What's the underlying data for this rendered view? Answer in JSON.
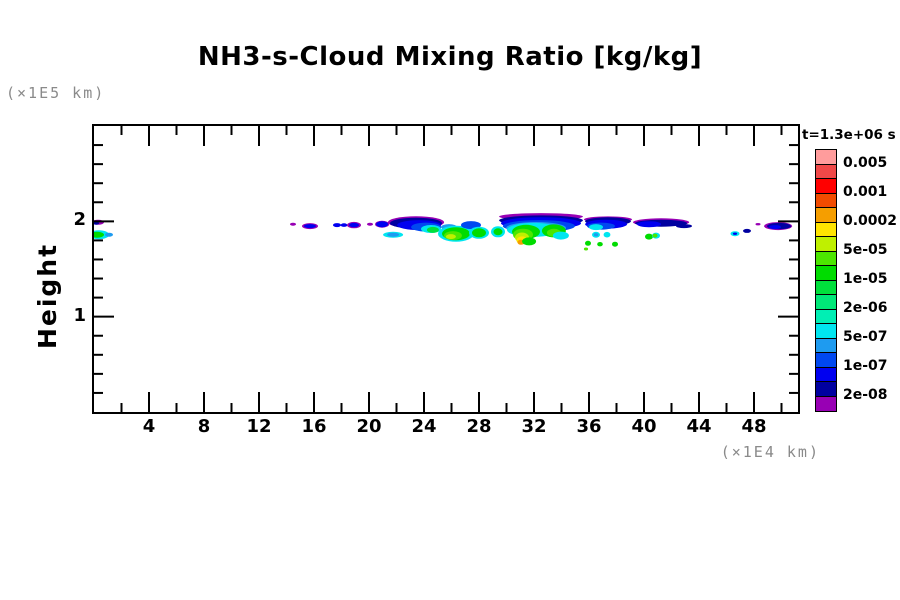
{
  "chart_data": {
    "type": "heatmap",
    "title": "NH3-s-Cloud Mixing Ratio [kg/kg]",
    "y_axis_label": "Height",
    "y_units_label": "(×1E5 km)",
    "x_units_label": "(×1E4 km)",
    "time_label": "t=1.3e+06 s",
    "x_range": [
      0,
      51.2
    ],
    "y_range": [
      0,
      3
    ],
    "x_major_ticks": [
      4,
      8,
      12,
      16,
      20,
      24,
      28,
      32,
      36,
      40,
      44,
      48
    ],
    "x_minor_ticks": [
      2,
      6,
      10,
      14,
      18,
      22,
      26,
      30,
      34,
      38,
      42,
      46,
      50
    ],
    "y_major_ticks": [
      1,
      2
    ],
    "y_minor_ticks": [
      0.2,
      0.4,
      0.6,
      0.8,
      1.2,
      1.4,
      1.6,
      1.8,
      2.2,
      2.4,
      2.6,
      2.8
    ],
    "grid": false,
    "legend": {
      "position": "right",
      "labels": [
        "0.005",
        "0.001",
        "0.0002",
        "5e-05",
        "1e-05",
        "2e-06",
        "5e-07",
        "1e-07",
        "2e-08"
      ],
      "colors": [
        "#FF9C9C",
        "#F04848",
        "#FF0000",
        "#F14B00",
        "#F59E00",
        "#FFE400",
        "#BFF000",
        "#4CE600",
        "#00DC00",
        "#00E03C",
        "#00E878",
        "#00EFB4",
        "#00E6F0",
        "#1E9BF0",
        "#0048F0",
        "#0000F0",
        "#0000A0",
        "#9800B4"
      ]
    },
    "blob_fields": [
      "x",
      "y",
      "rx",
      "ry",
      "color_index"
    ],
    "blobs": [
      [
        0.29,
        1.99,
        0.44,
        0.026,
        17
      ],
      [
        0.15,
        1.98,
        0.22,
        0.016,
        16
      ],
      [
        0.36,
        1.86,
        0.73,
        0.047,
        12
      ],
      [
        0.22,
        1.86,
        0.51,
        0.031,
        8
      ],
      [
        1.09,
        1.86,
        0.29,
        0.021,
        13
      ],
      [
        14.47,
        1.97,
        0.22,
        0.016,
        17
      ],
      [
        15.71,
        1.95,
        0.58,
        0.031,
        17
      ],
      [
        15.71,
        1.95,
        0.44,
        0.021,
        15
      ],
      [
        17.67,
        1.96,
        0.29,
        0.021,
        15
      ],
      [
        18.18,
        1.96,
        0.25,
        0.019,
        15
      ],
      [
        18.91,
        1.96,
        0.51,
        0.034,
        17
      ],
      [
        18.91,
        1.96,
        0.36,
        0.023,
        15
      ],
      [
        20.07,
        1.97,
        0.22,
        0.016,
        17
      ],
      [
        20.95,
        1.97,
        0.51,
        0.037,
        17
      ],
      [
        20.95,
        1.97,
        0.44,
        0.031,
        15
      ],
      [
        21.75,
        1.86,
        0.73,
        0.031,
        12
      ],
      [
        21.75,
        1.86,
        0.44,
        0.021,
        13
      ],
      [
        23.42,
        1.99,
        2.04,
        0.063,
        17
      ],
      [
        23.42,
        1.98,
        1.89,
        0.058,
        16
      ],
      [
        23.64,
        1.96,
        1.6,
        0.052,
        15
      ],
      [
        24.15,
        1.94,
        1.09,
        0.047,
        14
      ],
      [
        24.51,
        1.92,
        0.73,
        0.042,
        12
      ],
      [
        24.65,
        1.91,
        0.44,
        0.031,
        9
      ],
      [
        25.82,
        1.94,
        0.58,
        0.031,
        13
      ],
      [
        26.33,
        1.87,
        1.31,
        0.084,
        12
      ],
      [
        26.33,
        1.87,
        1.02,
        0.068,
        8
      ],
      [
        26.11,
        1.85,
        0.65,
        0.047,
        7
      ],
      [
        25.96,
        1.84,
        0.36,
        0.026,
        6
      ],
      [
        27.42,
        1.96,
        0.73,
        0.042,
        14
      ],
      [
        28.0,
        1.88,
        0.73,
        0.063,
        12
      ],
      [
        28.0,
        1.88,
        0.51,
        0.047,
        8
      ],
      [
        29.38,
        1.89,
        0.51,
        0.058,
        12
      ],
      [
        29.38,
        1.89,
        0.33,
        0.037,
        8
      ],
      [
        32.51,
        2.05,
        3.05,
        0.037,
        17
      ],
      [
        32.51,
        2.01,
        3.05,
        0.052,
        16
      ],
      [
        32.51,
        1.98,
        2.91,
        0.063,
        15
      ],
      [
        32.36,
        1.95,
        2.62,
        0.063,
        14
      ],
      [
        32.15,
        1.93,
        2.18,
        0.063,
        13
      ],
      [
        31.93,
        1.91,
        1.89,
        0.073,
        12
      ],
      [
        31.42,
        1.89,
        1.02,
        0.073,
        8
      ],
      [
        31.2,
        1.86,
        0.73,
        0.063,
        7
      ],
      [
        31.13,
        1.83,
        0.51,
        0.052,
        6
      ],
      [
        31.13,
        1.8,
        0.4,
        0.042,
        5
      ],
      [
        31.05,
        1.78,
        0.25,
        0.026,
        4
      ],
      [
        31.64,
        1.79,
        0.51,
        0.042,
        8
      ],
      [
        33.45,
        1.9,
        0.87,
        0.068,
        8
      ],
      [
        33.45,
        1.88,
        0.51,
        0.042,
        7
      ],
      [
        33.96,
        1.85,
        0.58,
        0.042,
        12
      ],
      [
        37.38,
        2.02,
        1.75,
        0.031,
        17
      ],
      [
        37.38,
        2.0,
        1.67,
        0.042,
        16
      ],
      [
        37.24,
        1.97,
        1.53,
        0.047,
        15
      ],
      [
        36.87,
        1.95,
        1.02,
        0.037,
        14
      ],
      [
        36.51,
        1.94,
        0.51,
        0.031,
        12
      ],
      [
        36.51,
        1.86,
        0.29,
        0.031,
        12
      ],
      [
        36.51,
        1.86,
        0.16,
        0.017,
        13
      ],
      [
        37.31,
        1.86,
        0.25,
        0.029,
        12
      ],
      [
        35.93,
        1.77,
        0.22,
        0.026,
        8
      ],
      [
        36.8,
        1.76,
        0.2,
        0.023,
        8
      ],
      [
        37.89,
        1.76,
        0.22,
        0.026,
        8
      ],
      [
        35.78,
        1.71,
        0.15,
        0.016,
        7
      ],
      [
        41.24,
        1.99,
        2.04,
        0.042,
        17
      ],
      [
        41.24,
        1.98,
        1.89,
        0.037,
        16
      ],
      [
        40.36,
        1.97,
        0.87,
        0.031,
        15
      ],
      [
        42.91,
        1.95,
        0.58,
        0.021,
        16
      ],
      [
        40.36,
        1.84,
        0.29,
        0.031,
        8
      ],
      [
        40.87,
        1.85,
        0.29,
        0.031,
        12
      ],
      [
        40.8,
        1.85,
        0.18,
        0.021,
        7
      ],
      [
        46.62,
        1.87,
        0.33,
        0.026,
        12
      ],
      [
        46.62,
        1.87,
        0.15,
        0.013,
        15
      ],
      [
        47.49,
        1.9,
        0.29,
        0.021,
        16
      ],
      [
        48.29,
        1.97,
        0.18,
        0.013,
        17
      ],
      [
        49.75,
        1.95,
        1.02,
        0.042,
        17
      ],
      [
        49.82,
        1.95,
        0.87,
        0.034,
        16
      ],
      [
        49.53,
        1.94,
        0.44,
        0.021,
        15
      ]
    ]
  }
}
